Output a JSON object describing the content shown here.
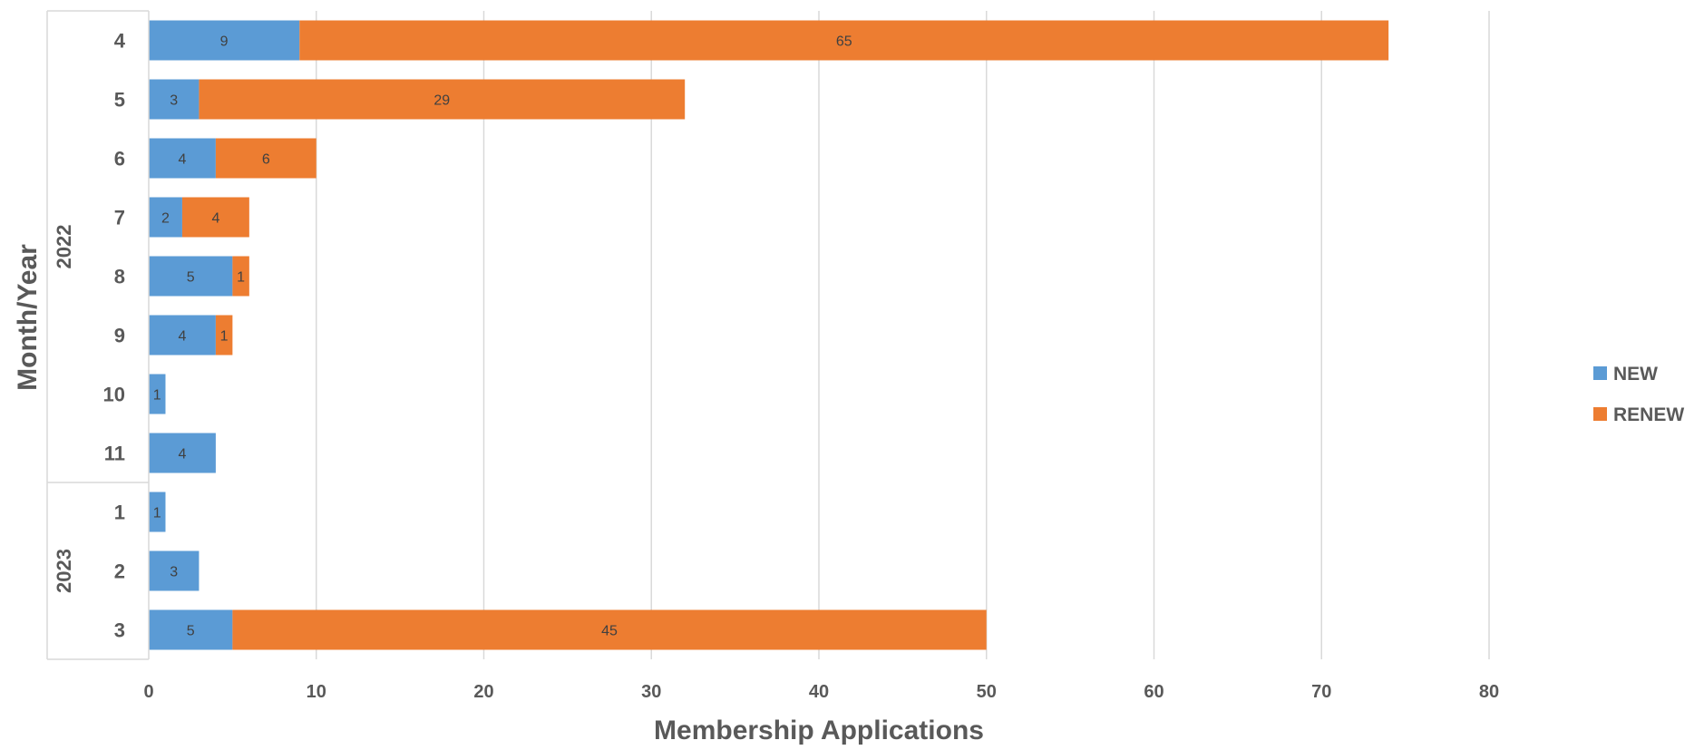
{
  "chart_data": {
    "type": "bar",
    "orientation": "horizontal",
    "stacked": true,
    "xlabel": "Membership Applications",
    "ylabel": "Month/Year",
    "xlim": [
      0,
      80
    ],
    "xticks": [
      0,
      10,
      20,
      30,
      40,
      50,
      60,
      70,
      80
    ],
    "grid": "vertical",
    "legend_position": "right",
    "groups": [
      {
        "year": "2022",
        "months": [
          "4",
          "5",
          "6",
          "7",
          "8",
          "9",
          "10",
          "11"
        ]
      },
      {
        "year": "2023",
        "months": [
          "1",
          "2",
          "3"
        ]
      }
    ],
    "series": [
      {
        "name": "NEW",
        "color": "#5B9BD5",
        "values": [
          9,
          3,
          4,
          2,
          5,
          4,
          1,
          4,
          1,
          3,
          5
        ]
      },
      {
        "name": "RENEW",
        "color": "#ED7D31",
        "values": [
          65,
          29,
          6,
          4,
          1,
          1,
          0,
          0,
          0,
          0,
          45
        ]
      }
    ]
  }
}
